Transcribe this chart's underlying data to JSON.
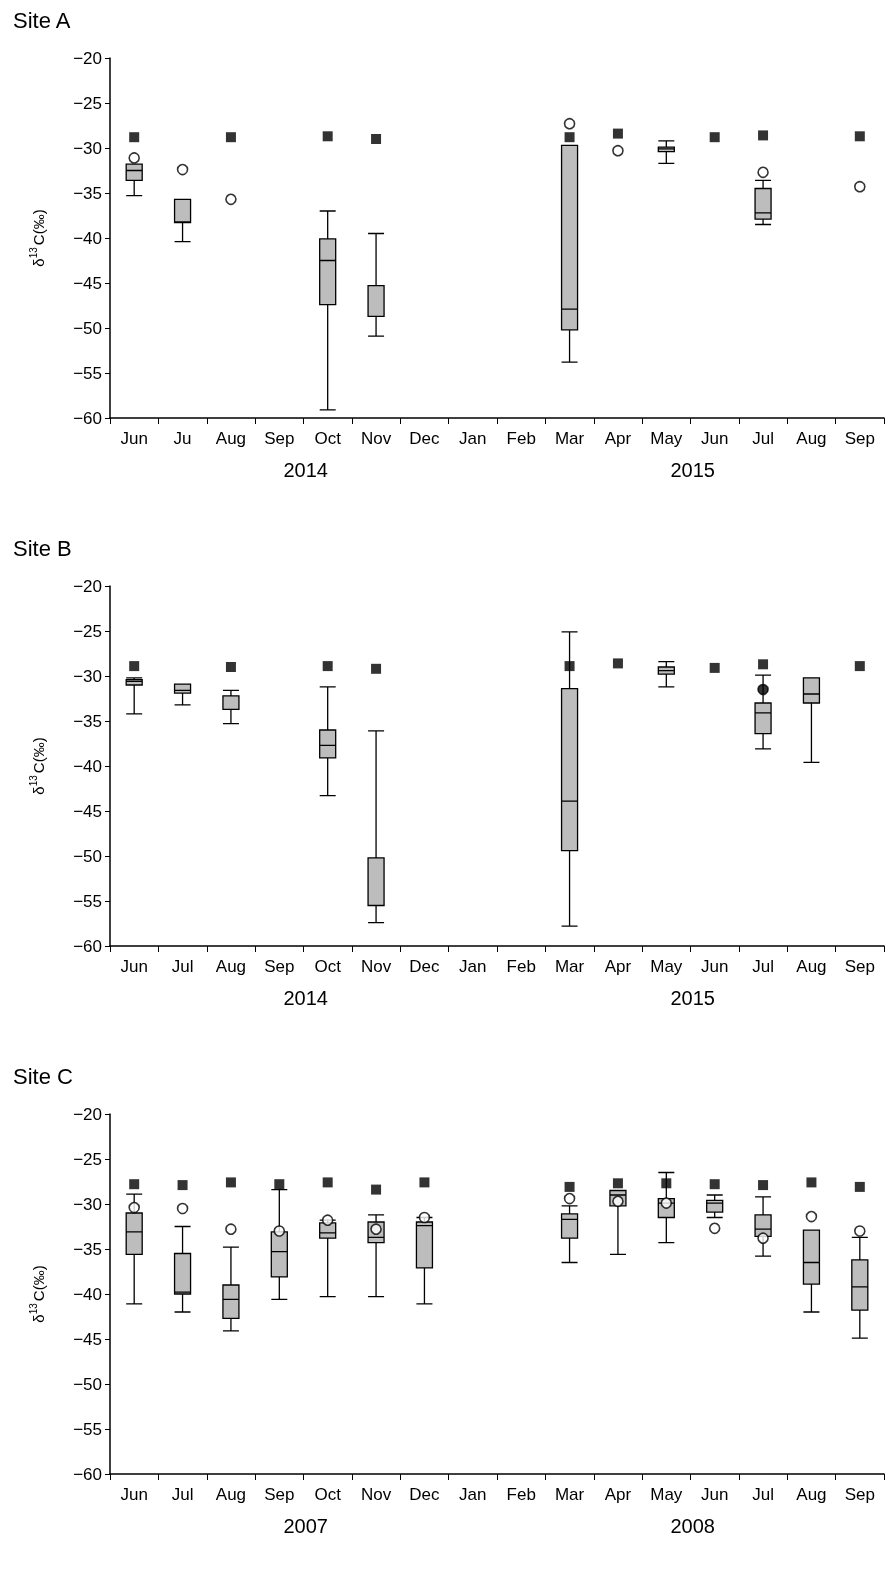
{
  "chart_data": [
    {
      "type": "box",
      "title": "Site A",
      "ylabel": "δ$^{13}$C(‰)",
      "annotations": [
        "2014",
        "2015"
      ],
      "categories": [
        "Jun",
        "Ju",
        "Aug",
        "Sep",
        "Oct",
        "Nov",
        "Dec",
        "Jan",
        "Feb",
        "Mar",
        "Apr",
        "May",
        "Jun",
        "Jul",
        "Aug",
        "Sep"
      ],
      "ylim": [
        -60,
        -20
      ],
      "yticks": [
        {
          "value": -60,
          "label": "−60"
        },
        {
          "value": -55,
          "label": "−55"
        },
        {
          "value": -50,
          "label": "−50"
        },
        {
          "value": -45,
          "label": "−45"
        },
        {
          "value": -40,
          "label": "−40"
        },
        {
          "value": -35,
          "label": "−35"
        },
        {
          "value": -30,
          "label": "−30"
        },
        {
          "value": -25,
          "label": "−25"
        },
        {
          "value": -20,
          "label": "−20"
        }
      ],
      "grid": false,
      "series": [
        {
          "type": "box",
          "color": "#bdbdbd",
          "boxes": [
            {
              "low": -35.3,
              "q1": -33.6,
              "median": -32.5,
              "q3": -31.8,
              "high": -31.8
            },
            {
              "low": -40.4,
              "q1": -38.3,
              "median": -38.2,
              "q3": -35.7,
              "high": -35.7
            },
            null,
            null,
            {
              "low": -59.1,
              "q1": -47.4,
              "median": -42.5,
              "q3": -40.1,
              "high": -37.0
            },
            {
              "low": -50.9,
              "q1": -48.7,
              "median": -48.7,
              "q3": -45.3,
              "high": -39.5
            },
            null,
            null,
            null,
            {
              "low": -53.8,
              "q1": -50.2,
              "median": -47.9,
              "q3": -29.7,
              "high": -29.7
            },
            null,
            {
              "low": -31.7,
              "q1": -30.4,
              "median": -30.1,
              "q3": -29.9,
              "high": -29.2
            },
            null,
            {
              "low": -38.5,
              "q1": -37.9,
              "median": -37.2,
              "q3": -34.5,
              "high": -33.6
            },
            null,
            null
          ]
        },
        {
          "type": "scatter",
          "marker": "square",
          "color": "#000000",
          "values": [
            -28.8,
            null,
            -28.8,
            null,
            -28.7,
            -29.0,
            null,
            null,
            null,
            -28.8,
            -28.4,
            null,
            -28.8,
            -28.6,
            null,
            -28.7
          ]
        },
        {
          "type": "scatter",
          "marker": "circle",
          "color": "#ffffff",
          "values": [
            -31.1,
            -32.4,
            -35.7,
            null,
            null,
            null,
            null,
            null,
            null,
            -27.3,
            -30.3,
            null,
            null,
            -32.7,
            null,
            -34.3
          ]
        }
      ]
    },
    {
      "type": "box",
      "title": "Site B",
      "ylabel": "δ$^{13}$C(‰)",
      "annotations": [
        "2014",
        "2015"
      ],
      "categories": [
        "Jun",
        "Jul",
        "Aug",
        "Sep",
        "Oct",
        "Nov",
        "Dec",
        "Jan",
        "Feb",
        "Mar",
        "Apr",
        "May",
        "Jun",
        "Jul",
        "Aug",
        "Sep"
      ],
      "ylim": [
        -60,
        -20
      ],
      "yticks": [
        {
          "value": -60,
          "label": "−60"
        },
        {
          "value": -55,
          "label": "−55"
        },
        {
          "value": -50,
          "label": "−50"
        },
        {
          "value": -45,
          "label": "−45"
        },
        {
          "value": -40,
          "label": "−40"
        },
        {
          "value": -35,
          "label": "−35"
        },
        {
          "value": -30,
          "label": "−30"
        },
        {
          "value": -25,
          "label": "−25"
        },
        {
          "value": -20,
          "label": "−20"
        }
      ],
      "grid": false,
      "series": [
        {
          "type": "box",
          "color": "#bdbdbd",
          "boxes": [
            {
              "low": -34.2,
              "q1": -31.0,
              "median": -30.6,
              "q3": -30.4,
              "high": -30.2
            },
            {
              "low": -33.2,
              "q1": -31.9,
              "median": -31.6,
              "q3": -30.9,
              "high": -30.9
            },
            {
              "low": -35.3,
              "q1": -33.7,
              "median": -33.7,
              "q3": -32.2,
              "high": -31.6
            },
            null,
            {
              "low": -43.3,
              "q1": -39.1,
              "median": -37.7,
              "q3": -36.0,
              "high": -31.2
            },
            {
              "low": -57.4,
              "q1": -55.5,
              "median": -55.5,
              "q3": -50.2,
              "high": -36.1
            },
            null,
            null,
            null,
            {
              "low": -57.8,
              "q1": -49.4,
              "median": -43.9,
              "q3": -31.4,
              "high": -25.1
            },
            null,
            {
              "low": -31.2,
              "q1": -29.8,
              "median": -29.4,
              "q3": -29.0,
              "high": -28.4
            },
            null,
            {
              "low": -38.1,
              "q1": -36.4,
              "median": -34.1,
              "q3": -33.0,
              "high": -29.9
            },
            {
              "low": -39.6,
              "q1": -33.0,
              "median": -32.0,
              "q3": -30.2,
              "high": -30.2
            },
            null
          ]
        },
        {
          "type": "scatter",
          "marker": "square",
          "color": "#000000",
          "values": [
            -28.9,
            null,
            -29.0,
            null,
            -28.9,
            -29.2,
            null,
            null,
            null,
            -28.9,
            -28.6,
            null,
            -29.1,
            -28.7,
            null,
            -28.9
          ]
        },
        {
          "type": "scatter",
          "marker": "circle",
          "color": "#000000",
          "values": [
            null,
            null,
            null,
            null,
            null,
            null,
            null,
            null,
            null,
            null,
            null,
            null,
            null,
            -31.5,
            null,
            null
          ]
        }
      ]
    },
    {
      "type": "box",
      "title": "Site C",
      "ylabel": "δ$^{13}$C(‰)",
      "annotations": [
        "2007",
        "2008"
      ],
      "categories": [
        "Jun",
        "Jul",
        "Aug",
        "Sep",
        "Oct",
        "Nov",
        "Dec",
        "Jan",
        "Feb",
        "Mar",
        "Apr",
        "May",
        "Jun",
        "Jul",
        "Aug",
        "Sep"
      ],
      "ylim": [
        -60,
        -20
      ],
      "yticks": [
        {
          "value": -60,
          "label": "−60"
        },
        {
          "value": -55,
          "label": "−55"
        },
        {
          "value": -50,
          "label": "−50"
        },
        {
          "value": -45,
          "label": "−45"
        },
        {
          "value": -40,
          "label": "−40"
        },
        {
          "value": -35,
          "label": "−35"
        },
        {
          "value": -30,
          "label": "−30"
        },
        {
          "value": -25,
          "label": "−25"
        },
        {
          "value": -20,
          "label": "−20"
        }
      ],
      "grid": false,
      "series": [
        {
          "type": "box",
          "color": "#bdbdbd",
          "boxes": [
            {
              "low": -41.1,
              "q1": -35.6,
              "median": -33.1,
              "q3": -31.0,
              "high": -28.9
            },
            {
              "low": -42.0,
              "q1": -40.0,
              "median": -39.8,
              "q3": -35.5,
              "high": -32.5
            },
            {
              "low": -44.1,
              "q1": -42.7,
              "median": -40.6,
              "q3": -39.0,
              "high": -34.8
            },
            {
              "low": -40.6,
              "q1": -38.1,
              "median": -35.3,
              "q3": -33.1,
              "high": -28.4
            },
            {
              "low": -40.3,
              "q1": -33.8,
              "median": -33.2,
              "q3": -32.1,
              "high": -31.8
            },
            {
              "low": -40.3,
              "q1": -34.3,
              "median": -33.7,
              "q3": -32.0,
              "high": -31.2
            },
            {
              "low": -41.1,
              "q1": -37.1,
              "median": -32.4,
              "q3": -32.0,
              "high": -31.5
            },
            null,
            null,
            {
              "low": -36.5,
              "q1": -33.8,
              "median": -31.7,
              "q3": -31.1,
              "high": -30.2
            },
            {
              "low": -35.6,
              "q1": -30.2,
              "median": -29.0,
              "q3": -28.5,
              "high": -28.5
            },
            {
              "low": -34.3,
              "q1": -31.5,
              "median": -29.9,
              "q3": -29.4,
              "high": -26.5
            },
            {
              "low": -31.5,
              "q1": -30.9,
              "median": -29.9,
              "q3": -29.6,
              "high": -29.0
            },
            {
              "low": -35.8,
              "q1": -33.6,
              "median": -32.8,
              "q3": -31.2,
              "high": -29.2
            },
            {
              "low": -42.0,
              "q1": -38.9,
              "median": -36.5,
              "q3": -32.9,
              "high": -32.9
            },
            {
              "low": -44.9,
              "q1": -41.8,
              "median": -39.2,
              "q3": -36.2,
              "high": -33.7
            }
          ]
        },
        {
          "type": "scatter",
          "marker": "square",
          "color": "#000000",
          "values": [
            -27.8,
            -27.9,
            -27.6,
            -27.8,
            -27.6,
            -28.4,
            -27.6,
            null,
            null,
            -28.1,
            -27.7,
            -27.7,
            -27.8,
            -27.9,
            -27.6,
            -28.1
          ]
        },
        {
          "type": "scatter",
          "marker": "circle",
          "color": "#ffffff",
          "values": [
            -30.4,
            -30.5,
            -32.8,
            -33.0,
            -31.8,
            -32.8,
            -31.5,
            null,
            null,
            -29.4,
            -29.7,
            -29.9,
            -32.7,
            -33.8,
            -31.4,
            -33.0
          ]
        }
      ]
    }
  ]
}
